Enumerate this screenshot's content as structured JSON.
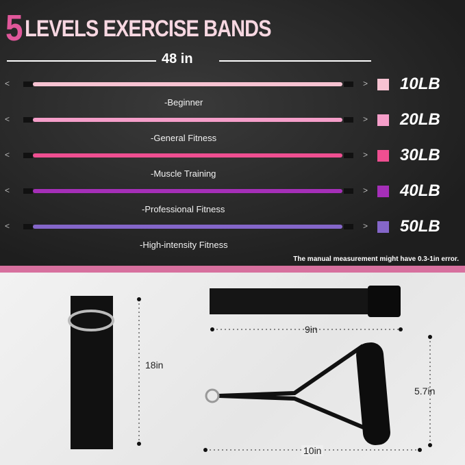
{
  "title": {
    "number": "5",
    "text": "LEVELS EXERCISE BANDS"
  },
  "length_label": "48 in",
  "bands": [
    {
      "weight": "10LB",
      "level": "-Beginner",
      "color": "#f7c3d2"
    },
    {
      "weight": "20LB",
      "level": "-General Fitness",
      "color": "#f59ec9"
    },
    {
      "weight": "30LB",
      "level": "-Muscle Training",
      "color": "#ef4f91"
    },
    {
      "weight": "40LB",
      "level": "-Professional  Fitness",
      "color": "#a52fb8"
    },
    {
      "weight": "50LB",
      "level": "-High-intensity Fitness",
      "color": "#8466c9"
    }
  ],
  "note": "The manual measurement might have 0.3-1in error.",
  "accessories": {
    "ankle_strap": "18in",
    "door_anchor": "9in",
    "handle_height": "5.7in",
    "handle_width": "10in"
  }
}
